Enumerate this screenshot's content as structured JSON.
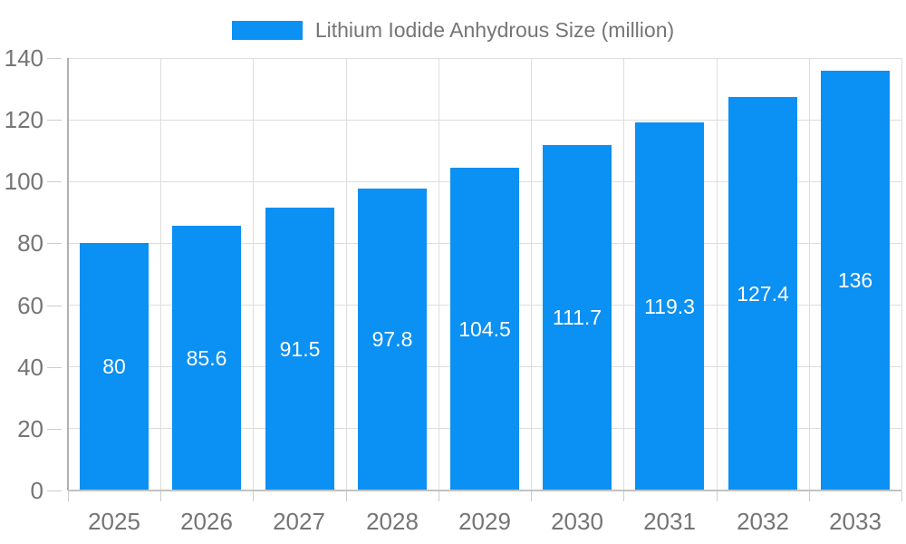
{
  "legend": {
    "label": "Lithium Iodide Anhydrous Size (million)"
  },
  "colors": {
    "bar": "#0B90F3",
    "grid": "#dedede",
    "y_axis_line": "#b0b0b0",
    "x_axis_line": "#c2c2c2",
    "tick": "#cccccc",
    "axis_text": "#757575",
    "value_text": "#ffffff",
    "background": "#ffffff"
  },
  "chart_data": {
    "type": "bar",
    "title": "Lithium Iodide Anhydrous Size (million)",
    "categories": [
      "2025",
      "2026",
      "2027",
      "2028",
      "2029",
      "2030",
      "2031",
      "2032",
      "2033"
    ],
    "series": [
      {
        "name": "Lithium Iodide Anhydrous Size (million)",
        "values": [
          80,
          85.6,
          91.5,
          97.8,
          104.5,
          111.7,
          119.3,
          127.4,
          136
        ]
      }
    ],
    "xlabel": "",
    "ylabel": "",
    "ylim": [
      0,
      140
    ],
    "yticks": [
      0,
      20,
      40,
      60,
      80,
      100,
      120,
      140
    ],
    "grid": true,
    "grid_vertical": true,
    "legend_position": "top-center",
    "value_label_position": "inside-center"
  }
}
